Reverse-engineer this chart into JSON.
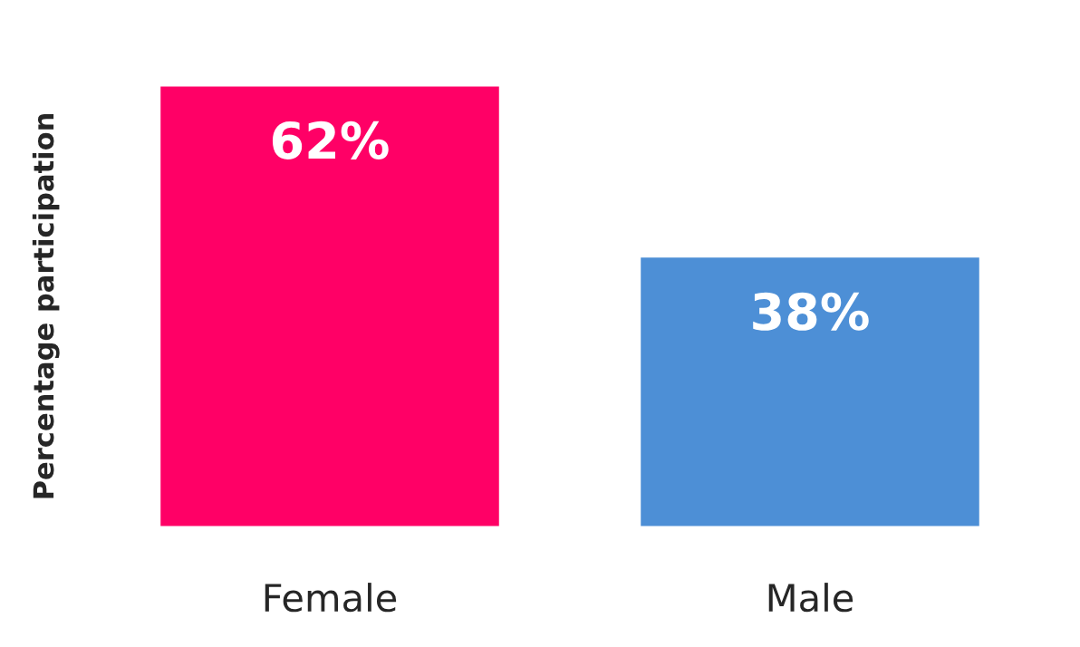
{
  "chart_data": {
    "type": "bar",
    "ylabel": "Percentage participation",
    "categories": [
      "Female",
      "Male"
    ],
    "values": [
      62,
      38
    ],
    "colors": [
      "#ff0066",
      "#4d8fd6"
    ],
    "value_labels": [
      "62%",
      "38%"
    ],
    "grid": false,
    "legend": false,
    "tick_labels": "x"
  }
}
